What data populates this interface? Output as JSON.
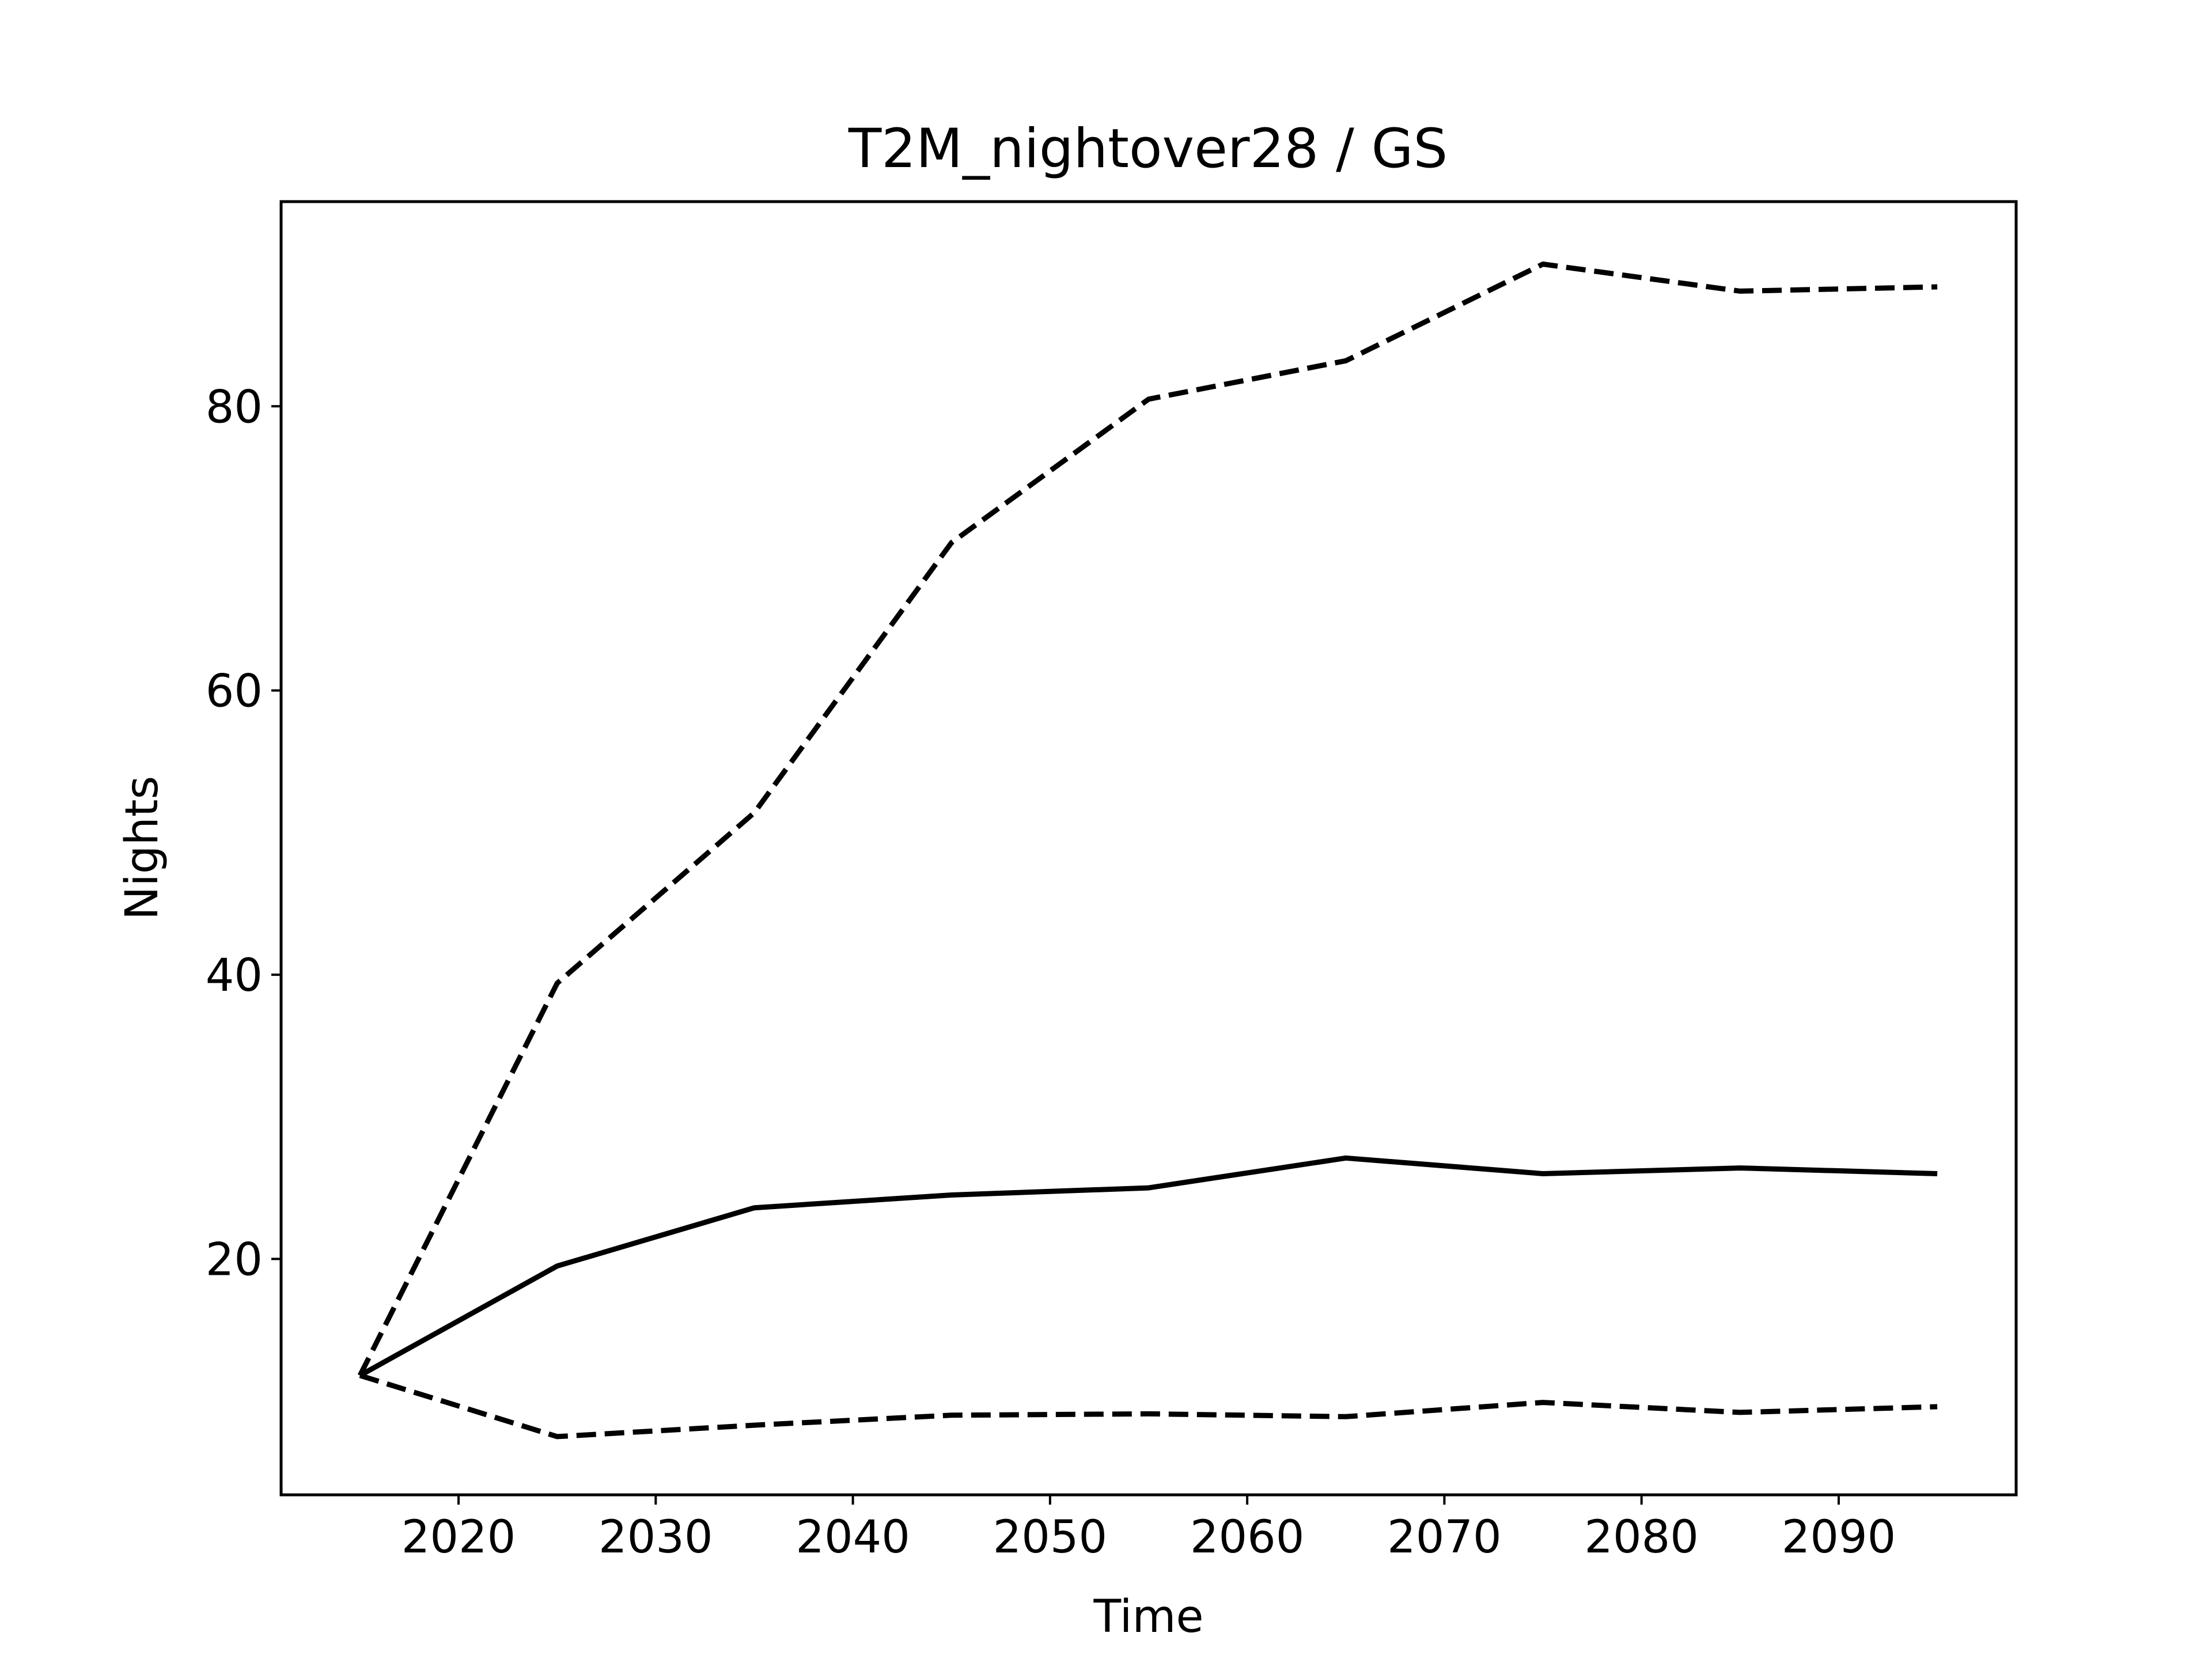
{
  "chart_data": {
    "type": "line",
    "title": "T2M_nightover28 / GS",
    "xlabel": "Time",
    "ylabel": "Nights",
    "xlim": [
      2011,
      2099
    ],
    "ylim": [
      3.4,
      94.4
    ],
    "xticks": [
      2020,
      2030,
      2040,
      2050,
      2060,
      2070,
      2080,
      2090
    ],
    "yticks": [
      20,
      40,
      60,
      80
    ],
    "grid": false,
    "legend": "none",
    "line_color": "#000000",
    "x": [
      2015,
      2025,
      2035,
      2045,
      2055,
      2065,
      2075,
      2085,
      2095
    ],
    "series": [
      {
        "style": "dashed",
        "values": [
          11.8,
          39.4,
          51.4,
          70.4,
          80.5,
          83.2,
          90.0,
          88.1,
          88.4
        ]
      },
      {
        "style": "solid",
        "values": [
          11.8,
          19.5,
          23.6,
          24.5,
          25.0,
          27.1,
          26.0,
          26.4,
          26.0
        ]
      },
      {
        "style": "dashed",
        "values": [
          11.8,
          7.5,
          8.3,
          9.0,
          9.1,
          8.9,
          9.9,
          9.2,
          9.6
        ]
      }
    ]
  }
}
